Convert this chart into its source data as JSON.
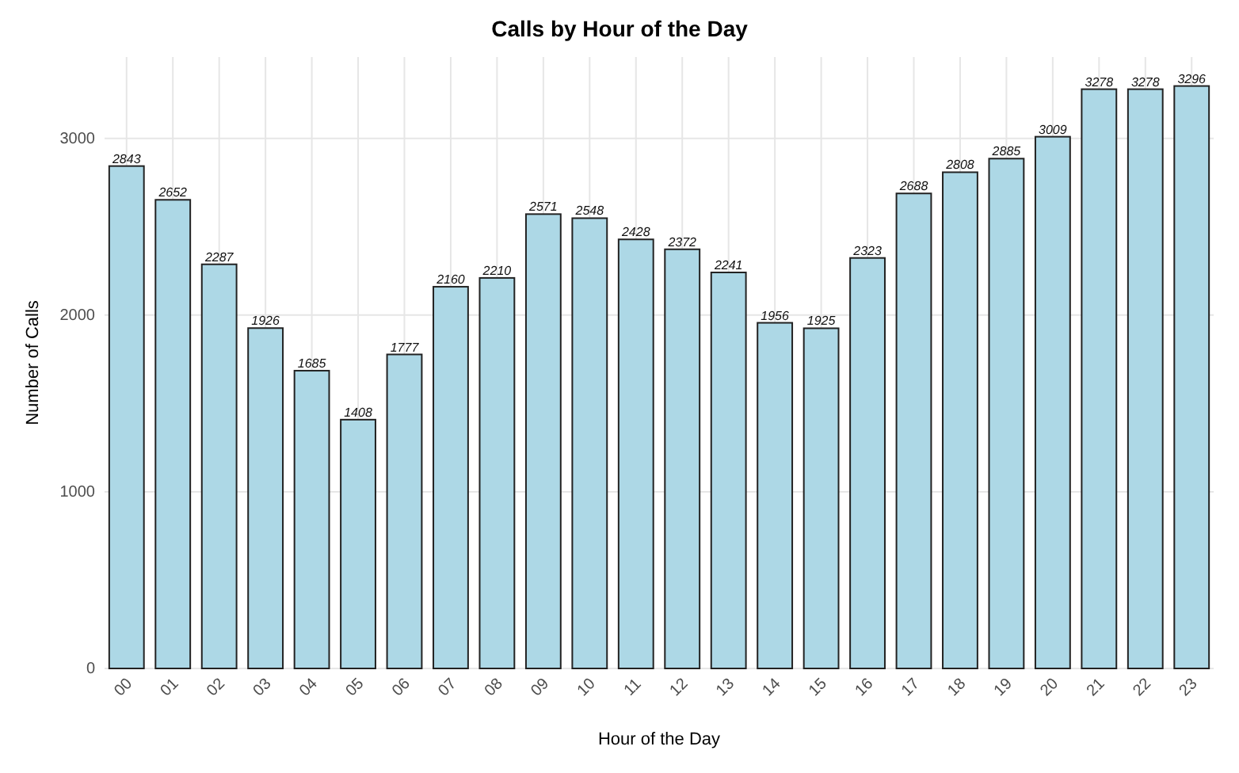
{
  "chart_data": {
    "type": "bar",
    "title": "Calls by Hour of the Day",
    "xlabel": "Hour of the Day",
    "ylabel": "Number of Calls",
    "categories": [
      "00",
      "01",
      "02",
      "03",
      "04",
      "05",
      "06",
      "07",
      "08",
      "09",
      "10",
      "11",
      "12",
      "13",
      "14",
      "15",
      "16",
      "17",
      "18",
      "19",
      "20",
      "21",
      "22",
      "23"
    ],
    "values": [
      2843,
      2652,
      2287,
      1926,
      1685,
      1408,
      1777,
      2160,
      2210,
      2571,
      2548,
      2428,
      2372,
      2241,
      1956,
      1925,
      2323,
      2688,
      2808,
      2885,
      3009,
      3278,
      3278,
      3296
    ],
    "color": "#add8e6",
    "ylim": [
      0,
      3460
    ],
    "yticks": [
      0,
      1000,
      2000,
      3000
    ],
    "grid": true,
    "data_labels": true
  }
}
